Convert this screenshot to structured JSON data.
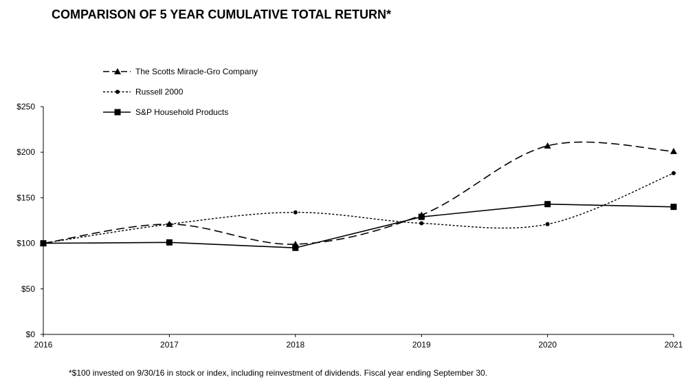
{
  "chart_data": {
    "type": "line",
    "title": "COMPARISON OF 5 YEAR CUMULATIVE TOTAL RETURN*",
    "footnote": "*$100 invested on 9/30/16 in stock or index, including reinvestment of dividends. Fiscal year ending September 30.",
    "categories": [
      "2016",
      "2017",
      "2018",
      "2019",
      "2020",
      "2021"
    ],
    "y_ticks": [
      "$0",
      "$50",
      "$100",
      "$150",
      "$200",
      "$250"
    ],
    "ylim": [
      0,
      250
    ],
    "xlabel": "",
    "ylabel": "",
    "legend_position": "top-left",
    "series": [
      {
        "name": "The Scotts Miracle-Gro Company",
        "marker": "triangle",
        "dash": "dashed",
        "smooth": true,
        "values": [
          100,
          121,
          99,
          131,
          207,
          201
        ]
      },
      {
        "name": "Russell 2000",
        "marker": "circle",
        "dash": "dotted",
        "smooth": true,
        "values": [
          100,
          121,
          134,
          122,
          121,
          177
        ]
      },
      {
        "name": "S&P Household Products",
        "marker": "square",
        "dash": "solid",
        "smooth": false,
        "values": [
          100,
          101,
          95,
          129,
          143,
          140
        ]
      }
    ]
  }
}
